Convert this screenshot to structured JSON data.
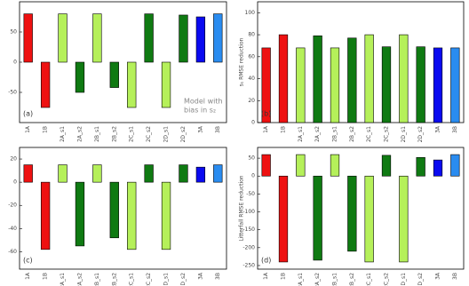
{
  "chart_data": [
    {
      "type": "bar",
      "label": "(a)",
      "annotation": [
        "Model with",
        "bias in s₂"
      ],
      "categories": [
        "1A",
        "1B",
        "2A_s1",
        "2A_s2",
        "2B_s1",
        "2B_s2",
        "2C_s1",
        "2C_s2",
        "2D_s1",
        "2D_s2",
        "3A",
        "3B"
      ],
      "values": [
        80,
        -75,
        80,
        -50,
        80,
        -42,
        -75,
        80,
        -75,
        78,
        75,
        80
      ],
      "colors": [
        "#ee1111",
        "#ee1111",
        "#b5f05a",
        "#0f7a12",
        "#b5f05a",
        "#0f7a12",
        "#b5f05a",
        "#0f7a12",
        "#b5f05a",
        "#0f7a12",
        "#0a0af0",
        "#2a8cf0"
      ],
      "ylim": [
        -100,
        100
      ],
      "yticks": [
        -50,
        0,
        50
      ]
    },
    {
      "type": "bar",
      "label": "(b)",
      "ylabel": "s₁ RMSE reduction",
      "categories": [
        "1A",
        "1B",
        "2A_s1",
        "2A_s2",
        "2B_s1",
        "2B_s2",
        "2C_s1",
        "2C_s2",
        "2D_s1",
        "2D_s2",
        "3A",
        "3B"
      ],
      "values": [
        68,
        80,
        68,
        79,
        68,
        77,
        80,
        69,
        80,
        69,
        68,
        68
      ],
      "colors": [
        "#ee1111",
        "#ee1111",
        "#b5f05a",
        "#0f7a12",
        "#b5f05a",
        "#0f7a12",
        "#b5f05a",
        "#0f7a12",
        "#b5f05a",
        "#0f7a12",
        "#0a0af0",
        "#2a8cf0"
      ],
      "ylim": [
        0,
        110
      ],
      "yticks": [
        0,
        20,
        40,
        60,
        80,
        100
      ]
    },
    {
      "type": "bar",
      "label": "(c)",
      "categories": [
        "1A",
        "1B",
        "2A_s1",
        "2A_s2",
        "2B_s1",
        "2B_s2",
        "2C_s1",
        "2C_s2",
        "2D_s1",
        "2D_s2",
        "3A",
        "3B"
      ],
      "values": [
        15,
        -58,
        15,
        -55,
        15,
        -48,
        -58,
        15,
        -58,
        15,
        13,
        15
      ],
      "colors": [
        "#ee1111",
        "#ee1111",
        "#b5f05a",
        "#0f7a12",
        "#b5f05a",
        "#0f7a12",
        "#b5f05a",
        "#0f7a12",
        "#b5f05a",
        "#0f7a12",
        "#0a0af0",
        "#2a8cf0"
      ],
      "ylim": [
        -75,
        30
      ],
      "yticks": [
        -60,
        -40,
        -20,
        0,
        20
      ]
    },
    {
      "type": "bar",
      "label": "(d)",
      "ylabel": "Litterfall RMSE reduction",
      "categories": [
        "1A",
        "1B",
        "2A_s1",
        "2A_s2",
        "2B_s1",
        "2B_s2",
        "2C_s1",
        "2C_s2",
        "2D_s1",
        "2D_s2",
        "3A",
        "3B"
      ],
      "values": [
        60,
        -240,
        60,
        -235,
        60,
        -210,
        -240,
        58,
        -240,
        52,
        45,
        60
      ],
      "colors": [
        "#ee1111",
        "#ee1111",
        "#b5f05a",
        "#0f7a12",
        "#b5f05a",
        "#0f7a12",
        "#b5f05a",
        "#0f7a12",
        "#b5f05a",
        "#0f7a12",
        "#0a0af0",
        "#2a8cf0"
      ],
      "ylim": [
        -260,
        80
      ],
      "yticks": [
        -250,
        -200,
        -150,
        -100,
        -50,
        0,
        50
      ]
    }
  ]
}
